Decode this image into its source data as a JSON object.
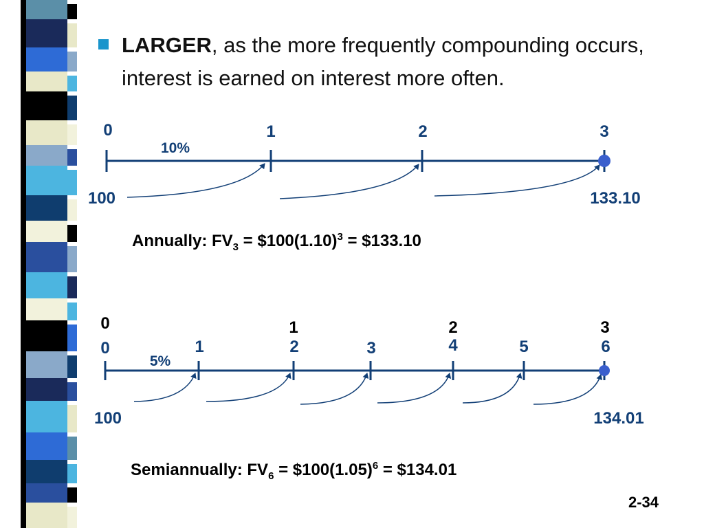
{
  "heading": {
    "bold": "LARGER",
    "rest": ", as the more frequently compounding occurs, interest is earned on interest more often."
  },
  "timeline_annual": {
    "periods": [
      "0",
      "1",
      "2",
      "3"
    ],
    "rate": "10%",
    "pv": "100",
    "fv": "133.10"
  },
  "formula_annual": {
    "prefix": "Annually:  FV",
    "sub": "3",
    "mid": " = $100(1.10)",
    "sup": "3",
    "suffix": " = $133.10"
  },
  "timeline_semi": {
    "years": [
      "0",
      "1",
      "2",
      "3"
    ],
    "periods": [
      "0",
      "1",
      "2",
      "3",
      "4",
      "5",
      "6"
    ],
    "rate": "5%",
    "pv": "100",
    "fv": "134.01"
  },
  "formula_semi": {
    "prefix": "Semiannually:  FV",
    "sub": "6",
    "mid": " = $100(1.05)",
    "sup": "6",
    "suffix": " = $134.01"
  },
  "page_number": "2-34",
  "colors": {
    "timeline": "#123f76",
    "bullet": "#1a95cc",
    "dot": "#3a5fcd"
  }
}
